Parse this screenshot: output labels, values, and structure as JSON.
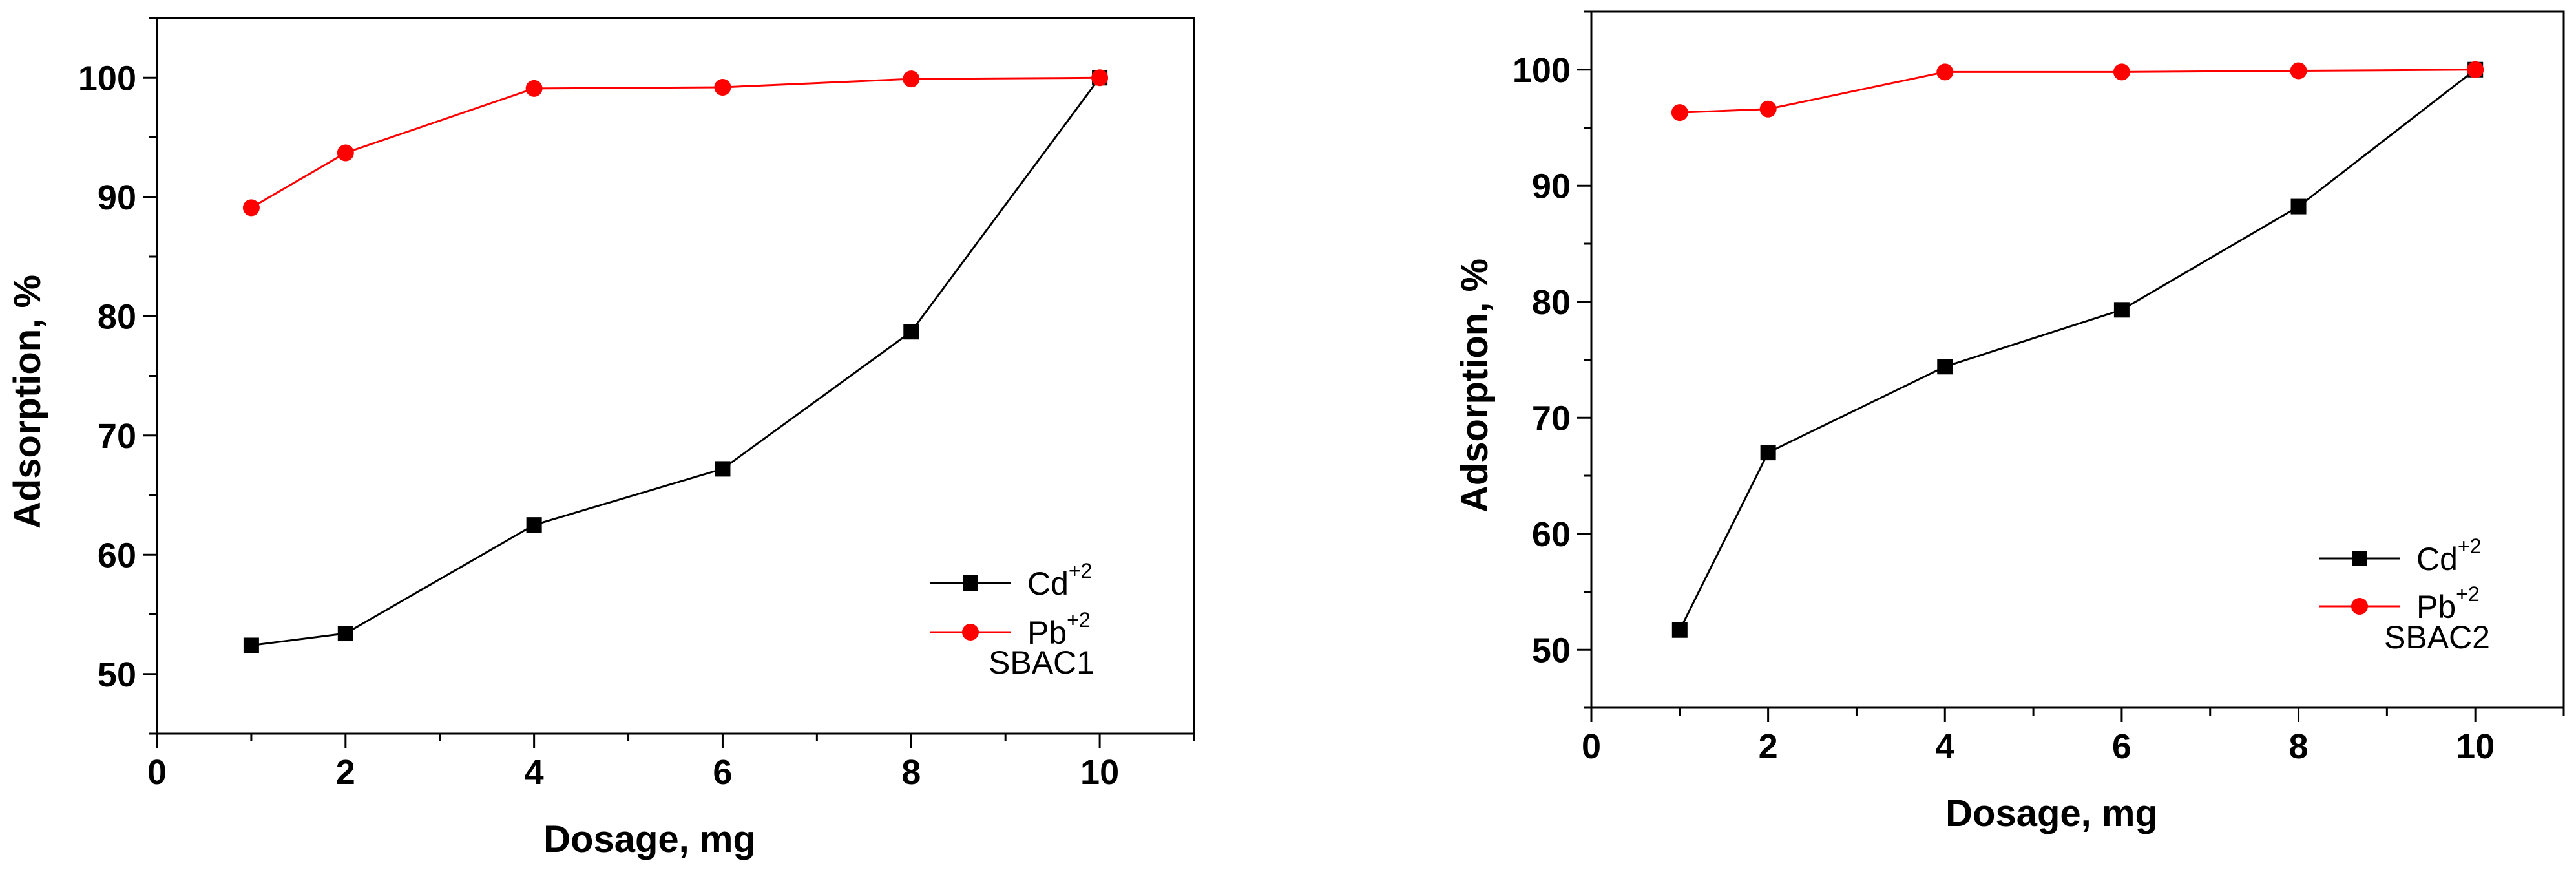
{
  "chart_data": [
    {
      "type": "line",
      "name": "left-panel",
      "xlabel": "Dosage, mg",
      "ylabel": "Adsorption, %",
      "xlim": [
        0,
        11
      ],
      "ylim": [
        45,
        105
      ],
      "xticks": [
        0,
        2,
        4,
        6,
        8,
        10
      ],
      "yticks": [
        50,
        60,
        70,
        80,
        90,
        100
      ],
      "grid": false,
      "legend_position": "bottom-right",
      "annotation": "SBAC1",
      "series": [
        {
          "name": "Cd",
          "superscript": "+2",
          "color": "#000000",
          "marker": "square",
          "x": [
            1,
            2,
            4,
            6,
            8,
            10
          ],
          "y": [
            52.4,
            53.4,
            62.5,
            67.2,
            78.7,
            100
          ]
        },
        {
          "name": "Pb",
          "superscript": "+2",
          "color": "#ff0000",
          "marker": "circle",
          "x": [
            1,
            2,
            4,
            6,
            8,
            10
          ],
          "y": [
            89.1,
            93.7,
            99.1,
            99.2,
            99.9,
            100
          ]
        }
      ]
    },
    {
      "type": "line",
      "name": "right-panel",
      "xlabel": "Dosage, mg",
      "ylabel": "Adsorption, %",
      "xlim": [
        0,
        11
      ],
      "ylim": [
        45,
        105
      ],
      "xticks": [
        0,
        2,
        4,
        6,
        8,
        10
      ],
      "yticks": [
        50,
        60,
        70,
        80,
        90,
        100
      ],
      "grid": false,
      "legend_position": "bottom-right",
      "annotation": "SBAC2",
      "series": [
        {
          "name": "Cd",
          "superscript": "+2",
          "color": "#000000",
          "marker": "square",
          "x": [
            1,
            2,
            4,
            6,
            8,
            10
          ],
          "y": [
            51.7,
            67.0,
            74.4,
            79.3,
            88.2,
            100
          ]
        },
        {
          "name": "Pb",
          "superscript": "+2",
          "color": "#ff0000",
          "marker": "circle",
          "x": [
            1,
            2,
            4,
            6,
            8,
            10
          ],
          "y": [
            96.3,
            96.6,
            99.8,
            99.8,
            99.9,
            100
          ]
        }
      ]
    }
  ]
}
